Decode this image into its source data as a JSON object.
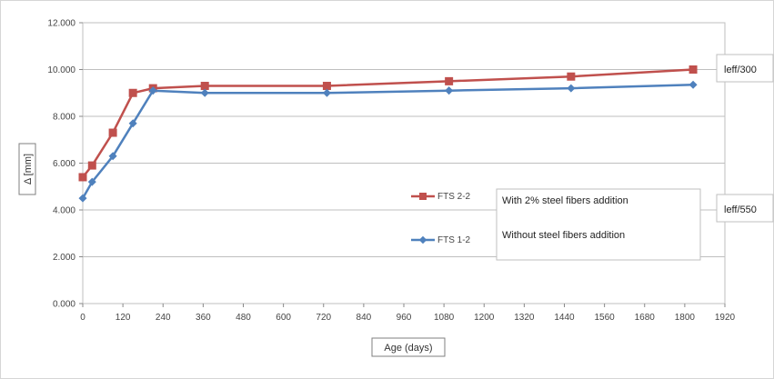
{
  "chart_data": {
    "type": "line",
    "title": "",
    "xlabel": "Age (days)",
    "ylabel": "Δ [mm]",
    "xlim": [
      0,
      1920
    ],
    "ylim": [
      0,
      12
    ],
    "xticks": [
      0,
      120,
      240,
      360,
      480,
      600,
      720,
      840,
      960,
      1080,
      1200,
      1320,
      1440,
      1560,
      1680,
      1800,
      1920
    ],
    "yticks": [
      "0.000",
      "2.000",
      "4.000",
      "6.000",
      "8.000",
      "10.000",
      "12.000"
    ],
    "grid": "horizontal",
    "series": [
      {
        "name": "FTS 2-2",
        "color": "#c0504d",
        "marker": "square",
        "x": [
          0,
          28,
          90,
          150,
          210,
          365,
          730,
          1095,
          1460,
          1825
        ],
        "y": [
          5.4,
          5.9,
          7.3,
          9.0,
          9.2,
          9.3,
          9.3,
          9.5,
          9.7,
          10.0
        ]
      },
      {
        "name": "FTS 1-2",
        "color": "#4f81bd",
        "marker": "diamond",
        "x": [
          0,
          28,
          90,
          150,
          210,
          365,
          730,
          1095,
          1460,
          1825
        ],
        "y": [
          4.5,
          5.2,
          6.3,
          7.7,
          9.1,
          9.0,
          9.0,
          9.1,
          9.2,
          9.35
        ]
      }
    ],
    "annotations": {
      "series_descriptions": [
        "With 2% steel fibers addition",
        "Without steel fibers addition"
      ],
      "limit_300": "leff/300",
      "limit_550": "leff/550"
    }
  }
}
